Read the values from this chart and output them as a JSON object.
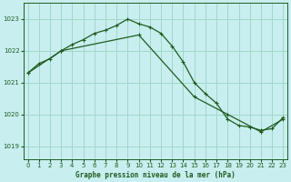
{
  "title": "Graphe pression niveau de la mer (hPa)",
  "bg_color": "#c8eef0",
  "grid_color": "#a0d8c8",
  "line_color": "#1e5c1e",
  "x_ticks": [
    0,
    1,
    2,
    3,
    4,
    5,
    6,
    7,
    8,
    9,
    10,
    11,
    12,
    13,
    14,
    15,
    16,
    17,
    18,
    19,
    20,
    21,
    22,
    23
  ],
  "y_ticks": [
    1019,
    1020,
    1021,
    1022,
    1023
  ],
  "ylim": [
    1018.6,
    1023.5
  ],
  "xlim": [
    -0.4,
    23.4
  ],
  "series1_x": [
    0,
    1,
    2,
    3,
    4,
    5,
    6,
    7,
    8,
    9,
    10,
    11,
    12,
    13,
    14,
    15,
    16,
    17,
    18,
    19,
    20,
    21,
    22,
    23
  ],
  "series1_y": [
    1021.3,
    1021.6,
    1021.75,
    1022.0,
    1022.2,
    1022.35,
    1022.55,
    1022.65,
    1022.8,
    1023.0,
    1022.85,
    1022.75,
    1022.55,
    1022.15,
    1021.65,
    1021.0,
    1020.65,
    1020.35,
    1019.85,
    1019.65,
    1019.6,
    1019.5,
    1019.55,
    1019.9
  ],
  "series2_x": [
    0,
    3,
    10,
    15,
    18,
    21,
    23
  ],
  "series2_y": [
    1021.3,
    1022.0,
    1022.5,
    1020.55,
    1020.0,
    1019.45,
    1019.85
  ]
}
